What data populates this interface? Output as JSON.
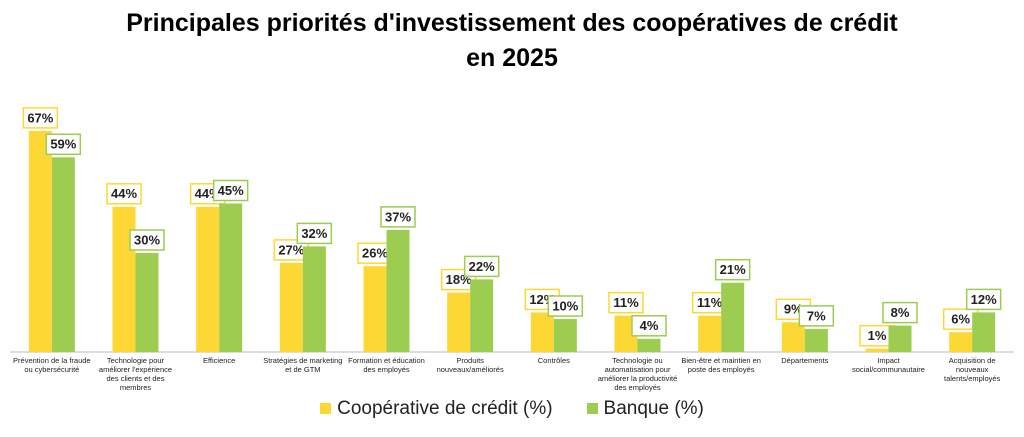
{
  "chart_data": {
    "type": "bar",
    "title": "Principales priorités d'investissement des coopératives de crédit en 2025",
    "categories": [
      "Prévention de la fraude ou cybersécurité",
      "Technologie pour améliorer l'expérience des clients et des membres",
      "Efficience",
      "Stratégies de marketing et de GTM",
      "Formation et éducation des employés",
      "Produits nouveaux/améliorés",
      "Contrôles",
      "Technologie ou automatisation pour améliorer la productivité des employés",
      "Bien-être et maintien en poste des employés",
      "Départements",
      "Impact social/communautaire",
      "Acquisition de nouveaux talents/employés"
    ],
    "series": [
      {
        "name": "Coopérative de crédit (%)",
        "color": "#fdd835",
        "values": [
          67,
          44,
          44,
          27,
          26,
          18,
          12,
          11,
          11,
          9,
          1,
          6
        ],
        "value_labels": [
          "67%",
          "44%",
          "44%",
          "27%",
          "26%",
          "18%",
          "12%",
          "11%",
          "11%",
          "9%",
          "1%",
          "6%"
        ]
      },
      {
        "name": "Banque (%)",
        "color": "#9ccc50",
        "values": [
          59,
          30,
          45,
          32,
          37,
          22,
          10,
          4,
          21,
          7,
          8,
          12
        ],
        "value_labels": [
          "59%",
          "30%",
          "45%",
          "32%",
          "37%",
          "22%",
          "10%",
          "4%",
          "21%",
          "7%",
          "8%",
          "12%"
        ]
      }
    ],
    "ylim": [
      0,
      70
    ]
  }
}
